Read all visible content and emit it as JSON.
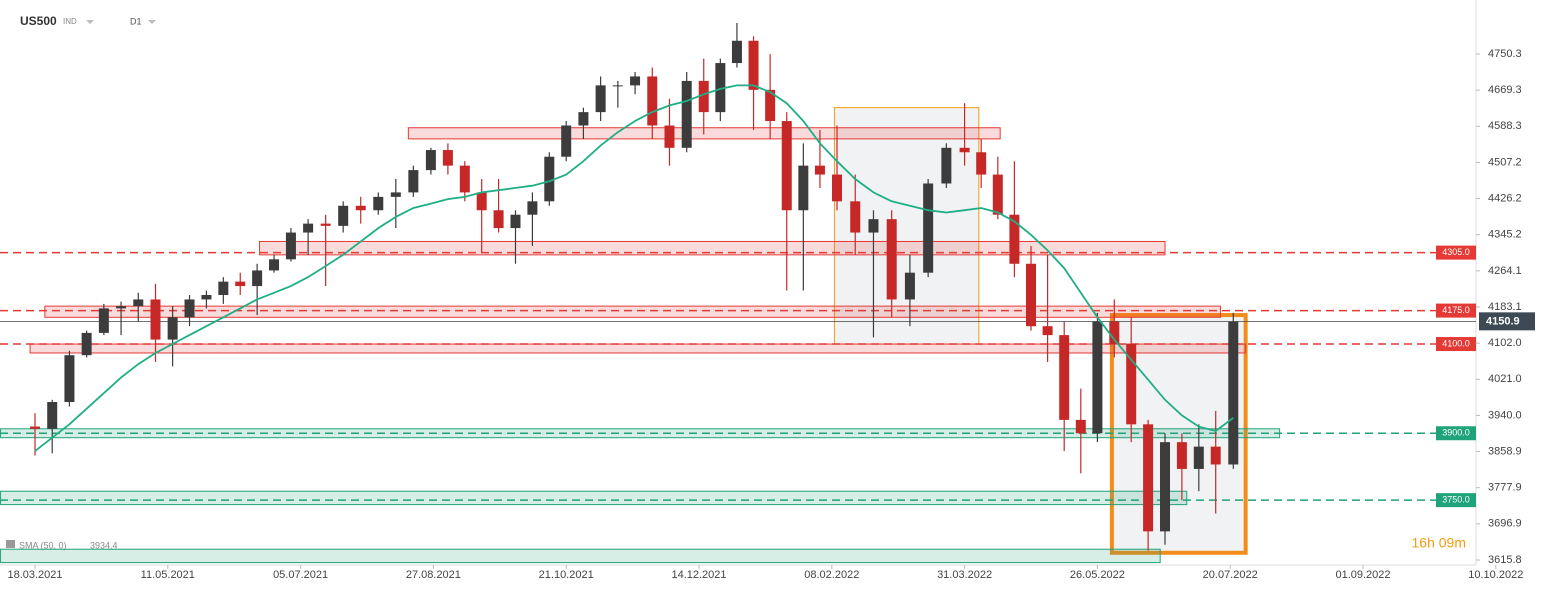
{
  "chart_data": {
    "type": "candlestick",
    "symbol": "US500",
    "instrument_type": "IND",
    "timeframe": "D1",
    "x": [
      "18.03.2021",
      "25.03.2021",
      "01.04.2021",
      "08.04.2021",
      "15.04.2021",
      "22.04.2021",
      "29.04.2021",
      "06.05.2021",
      "13.05.2021",
      "20.05.2021",
      "27.05.2021",
      "03.06.2021",
      "10.06.2021",
      "17.06.2021",
      "24.06.2021",
      "01.07.2021",
      "08.07.2021",
      "15.07.2021",
      "22.07.2021",
      "29.07.2021",
      "05.08.2021",
      "12.08.2021",
      "19.08.2021",
      "26.08.2021",
      "02.09.2021",
      "09.09.2021",
      "16.09.2021",
      "23.09.2021",
      "30.09.2021",
      "07.10.2021",
      "14.10.2021",
      "21.10.2021",
      "28.10.2021",
      "04.11.2021",
      "11.11.2021",
      "18.11.2021",
      "25.11.2021",
      "02.12.2021",
      "09.12.2021",
      "16.12.2021",
      "23.12.2021",
      "30.12.2021",
      "06.01.2022",
      "13.01.2022",
      "20.01.2022",
      "27.01.2022",
      "03.02.2022",
      "10.02.2022",
      "17.02.2022",
      "24.02.2022",
      "03.03.2022",
      "10.03.2022",
      "17.03.2022",
      "24.03.2022",
      "31.03.2022",
      "07.04.2022",
      "14.04.2022",
      "21.04.2022",
      "28.04.2022",
      "05.05.2022",
      "12.05.2022",
      "19.05.2022",
      "26.05.2022",
      "02.06.2022",
      "09.06.2022",
      "16.06.2022",
      "23.06.2022",
      "30.06.2022",
      "07.07.2022",
      "14.07.2022",
      "21.07.2022"
    ],
    "open": [
      3915,
      3910,
      3970,
      4075,
      4125,
      4180,
      4185,
      4200,
      4110,
      4160,
      4200,
      4210,
      4240,
      4230,
      4265,
      4290,
      4350,
      4370,
      4365,
      4410,
      4400,
      4430,
      4440,
      4490,
      4535,
      4500,
      4440,
      4400,
      4360,
      4390,
      4420,
      4520,
      4590,
      4620,
      4680,
      4680,
      4700,
      4590,
      4540,
      4690,
      4620,
      4730,
      4780,
      4670,
      4600,
      4400,
      4500,
      4480,
      4420,
      4350,
      4380,
      4200,
      4260,
      4460,
      4540,
      4530,
      4480,
      4390,
      4280,
      4140,
      4120,
      3930,
      3900,
      4150,
      4100,
      3920,
      3680,
      3880,
      3820,
      3870,
      3830
    ],
    "high": [
      3945,
      3975,
      4085,
      4130,
      4190,
      4195,
      4215,
      4235,
      4185,
      4210,
      4220,
      4250,
      4260,
      4280,
      4300,
      4360,
      4380,
      4390,
      4420,
      4430,
      4440,
      4470,
      4500,
      4540,
      4550,
      4510,
      4470,
      4470,
      4400,
      4440,
      4530,
      4600,
      4630,
      4700,
      4690,
      4710,
      4720,
      4650,
      4710,
      4740,
      4740,
      4820,
      4790,
      4750,
      4620,
      4550,
      4580,
      4590,
      4480,
      4400,
      4400,
      4300,
      4470,
      4550,
      4640,
      4560,
      4520,
      4510,
      4320,
      4300,
      4150,
      4000,
      4170,
      4200,
      4160,
      3930,
      3900,
      3900,
      3920,
      3950,
      4170
    ],
    "low": [
      3850,
      3855,
      3960,
      4070,
      4120,
      4120,
      4150,
      4060,
      4050,
      4140,
      4180,
      4190,
      4210,
      4165,
      4260,
      4285,
      4300,
      4230,
      4350,
      4370,
      4390,
      4360,
      4430,
      4480,
      4480,
      4420,
      4305,
      4350,
      4280,
      4320,
      4410,
      4510,
      4560,
      4600,
      4630,
      4660,
      4560,
      4500,
      4530,
      4570,
      4600,
      4720,
      4580,
      4560,
      4220,
      4220,
      4450,
      4400,
      4300,
      4115,
      4160,
      4140,
      4250,
      4450,
      4500,
      4450,
      4380,
      4250,
      4130,
      4060,
      3860,
      3810,
      3880,
      4070,
      3880,
      3637,
      3650,
      3750,
      3770,
      3720,
      3820
    ],
    "close": [
      3910,
      3970,
      4075,
      4125,
      4180,
      4185,
      4200,
      4110,
      4160,
      4200,
      4210,
      4240,
      4230,
      4265,
      4290,
      4350,
      4370,
      4365,
      4410,
      4400,
      4430,
      4440,
      4490,
      4535,
      4500,
      4440,
      4400,
      4360,
      4390,
      4420,
      4520,
      4590,
      4620,
      4680,
      4680,
      4700,
      4590,
      4540,
      4690,
      4620,
      4730,
      4780,
      4670,
      4600,
      4400,
      4500,
      4480,
      4420,
      4350,
      4380,
      4200,
      4260,
      4460,
      4540,
      4530,
      4480,
      4390,
      4280,
      4140,
      4120,
      3930,
      3900,
      4150,
      4100,
      3920,
      3680,
      3880,
      3820,
      3870,
      3830,
      4150
    ],
    "up_color": "#3c3c3c",
    "down_color": "#c62828",
    "sma": {
      "name": "SMA (50, 0)",
      "color": "#1fae86",
      "values": [
        3860,
        3890,
        3920,
        3955,
        3990,
        4025,
        4055,
        4080,
        4100,
        4120,
        4140,
        4160,
        4180,
        4200,
        4215,
        4230,
        4250,
        4275,
        4300,
        4330,
        4360,
        4385,
        4405,
        4415,
        4425,
        4430,
        4440,
        4445,
        4450,
        4455,
        4465,
        4480,
        4510,
        4545,
        4575,
        4600,
        4620,
        4635,
        4645,
        4660,
        4672,
        4680,
        4680,
        4665,
        4640,
        4600,
        4550,
        4510,
        4470,
        4440,
        4420,
        4410,
        4400,
        4395,
        4400,
        4405,
        4395,
        4375,
        4345,
        4310,
        4270,
        4215,
        4160,
        4110,
        4065,
        4020,
        3975,
        3940,
        3915,
        3905,
        3934.4
      ]
    },
    "xticks": [
      "18.03.2021",
      "11.05.2021",
      "05.07.2021",
      "27.08.2021",
      "21.10.2021",
      "14.12.2021",
      "08.02.2022",
      "31.03.2022",
      "26.05.2022",
      "20.07.2022",
      "01.09.2022",
      "10.10.2022"
    ],
    "ylim": [
      3604.6,
      4871.4
    ],
    "yticks": [
      3615.8,
      3696.9,
      3777.9,
      3858.9,
      {
        "value": 3940,
        "label": "3940.0"
      },
      {
        "value": 4021,
        "label": "4021.0"
      },
      {
        "value": 4102,
        "label": "4102.0"
      },
      4183.1,
      4264.1,
      4345.2,
      4426.2,
      4507.2,
      4588.3,
      4669.3,
      4750.3
    ],
    "current_price": 4150.9,
    "levels": [
      {
        "value": 4305,
        "label": "4305.0",
        "color": "#e53935"
      },
      {
        "value": 4175,
        "label": "4175.0",
        "color": "#e53935"
      },
      {
        "value": 4100,
        "label": "4100.0",
        "color": "#e53935"
      },
      {
        "value": 3900,
        "label": "3900.0",
        "color": "#1fa37a"
      },
      {
        "value": 3750,
        "label": "3750.0",
        "color": "#1fa37a"
      }
    ],
    "zones": [
      {
        "range": [
          4560,
          4585
        ],
        "start": "17.08.2021",
        "end": "15.04.2022",
        "color": "#e53935"
      },
      {
        "range": [
          4300,
          4330
        ],
        "start": "18.06.2021",
        "end": "23.06.2022",
        "color": "#e53935"
      },
      {
        "range": [
          4160,
          4185
        ],
        "start": "22.03.2021",
        "end": "16.07.2022",
        "color": "#e53935"
      },
      {
        "range": [
          4080,
          4100
        ],
        "start": "16.03.2021",
        "end": "25.07.2022",
        "color": "#e53935"
      },
      {
        "range": [
          3890,
          3910
        ],
        "start": "04.03.2021",
        "end": "05.08.2022",
        "color": "#1fa37a"
      },
      {
        "range": [
          3740,
          3770
        ],
        "start": "04.03.2021",
        "end": "02.07.2022",
        "color": "#1fa37a"
      },
      {
        "range": [
          3610,
          3640
        ],
        "start": "04.03.2021",
        "end": "21.06.2022",
        "color": "#1fa37a"
      }
    ],
    "boxes": [
      {
        "range": [
          4100,
          4630
        ],
        "start": "09.02.2022",
        "end": "06.04.2022",
        "color": "#f39c12",
        "width": 1
      },
      {
        "range": [
          3632,
          4165
        ],
        "start": "01.06.2022",
        "end": "25.07.2022",
        "color": "#f28c1a",
        "width": 4
      }
    ],
    "countdown": "16h 09m"
  }
}
